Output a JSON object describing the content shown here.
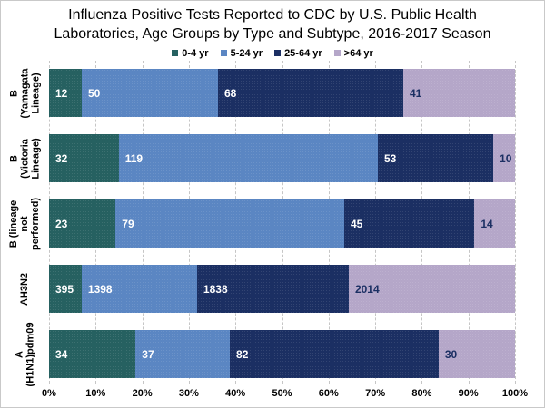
{
  "title_lines": [
    "Influenza Positive Tests Reported to CDC by U.S. Public Health",
    "Laboratories, Age Groups by Type and Subtype, 2016-2017 Season"
  ],
  "colors": {
    "age_0_4": "#266161",
    "age_5_24": "#5B86C3",
    "age_25_64": "#1B2F63",
    "age_over_64": "#B5A7C9",
    "gridline": "#c6c6c6",
    "label_on_dark": "#ffffff",
    "label_on_light": "#1B2F63"
  },
  "chart_data": {
    "type": "bar",
    "variant": "100%-stacked-horizontal",
    "title": "Influenza Positive Tests Reported to CDC by U.S. Public Health Laboratories, Age Groups by Type and Subtype, 2016-2017 Season",
    "categories": [
      "B (Yamagata Lineage)",
      "B (Victoria Lineage)",
      "B (lineage not performed)",
      "AH3N2",
      "A (H1N1)pdm09"
    ],
    "categories_display": [
      "B (Yamagata\nLineage)",
      "B (Victoria\nLineage)",
      "B (lineage not\nperformed)",
      "AH3N2",
      "A\n(H1N1)pdm09"
    ],
    "series": [
      {
        "name": "0-4 yr",
        "color": "#266161",
        "label_color": "#ffffff",
        "values": [
          12,
          32,
          23,
          395,
          34
        ]
      },
      {
        "name": "5-24 yr",
        "color": "#5B86C3",
        "label_color": "#ffffff",
        "values": [
          50,
          119,
          79,
          1398,
          37
        ]
      },
      {
        "name": "25-64 yr",
        "color": "#1B2F63",
        "label_color": "#ffffff",
        "values": [
          68,
          53,
          45,
          1838,
          82
        ]
      },
      {
        "name": ">64 yr",
        "color": "#B5A7C9",
        "label_color": "#1B2F63",
        "values": [
          41,
          10,
          14,
          2014,
          30
        ]
      }
    ],
    "x_ticks": [
      "0%",
      "10%",
      "20%",
      "30%",
      "40%",
      "50%",
      "60%",
      "70%",
      "80%",
      "90%",
      "100%"
    ],
    "xlim": [
      0,
      100
    ],
    "grid": "vertical-dashed",
    "legend_position": "top",
    "value_labels": "inside-start"
  }
}
